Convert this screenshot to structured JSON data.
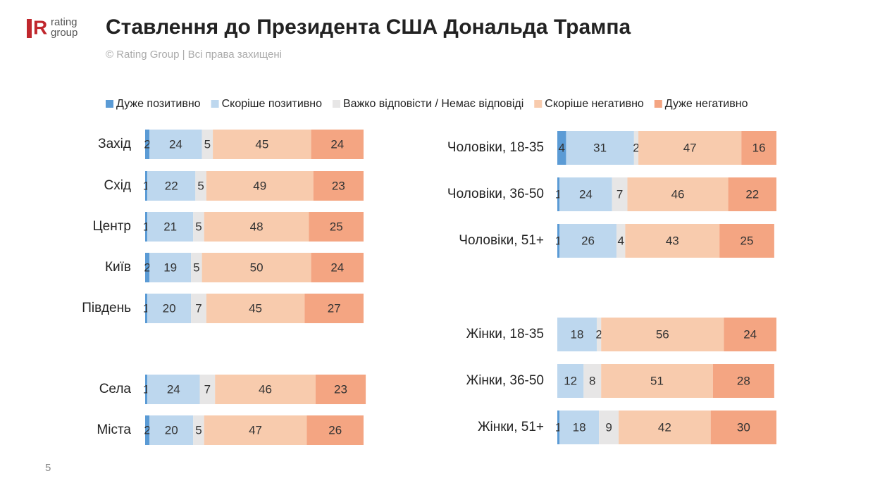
{
  "logo": [
    "rating",
    "group"
  ],
  "page_number": "5",
  "chart_data": [
    {
      "type": "stacked-bar-horizontal",
      "title": "Ставлення до Президента США Дональда Трампа",
      "subtitle": "© Rating Group | Всі права захищені",
      "xlim": [
        0,
        100
      ],
      "categories": [
        "Захід",
        "Схід",
        "Центр",
        "Київ",
        "Південь",
        "Села",
        "Міста"
      ],
      "series": [
        {
          "name": "Дуже позитивно",
          "color": "#5b9bd5",
          "values": [
            2,
            1,
            1,
            2,
            1,
            1,
            2
          ]
        },
        {
          "name": "Скоріше позитивно",
          "color": "#bdd7ee",
          "values": [
            24,
            22,
            21,
            19,
            20,
            24,
            20
          ]
        },
        {
          "name": "Важко відповісти / Немає відповіді",
          "color": "#e7e6e6",
          "values": [
            5,
            5,
            5,
            5,
            7,
            7,
            5
          ]
        },
        {
          "name": "Скоріше негативно",
          "color": "#f8cbad",
          "values": [
            45,
            49,
            48,
            50,
            45,
            46,
            47
          ]
        },
        {
          "name": "Дуже негативно",
          "color": "#f4a582",
          "values": [
            24,
            23,
            25,
            24,
            27,
            23,
            26
          ]
        }
      ]
    },
    {
      "type": "stacked-bar-horizontal",
      "xlim": [
        0,
        100
      ],
      "categories": [
        "Чоловіки, 18-35",
        "Чоловіки, 36-50",
        "Чоловіки, 51+",
        "Жінки, 18-35",
        "Жінки, 36-50",
        "Жінки, 51+"
      ],
      "series": [
        {
          "color": "#5b9bd5",
          "values": [
            4,
            1,
            1,
            0,
            0,
            1
          ]
        },
        {
          "color": "#bdd7ee",
          "values": [
            31,
            24,
            26,
            18,
            12,
            18
          ]
        },
        {
          "color": "#e7e6e6",
          "values": [
            2,
            7,
            4,
            2,
            8,
            9
          ]
        },
        {
          "color": "#f8cbad",
          "values": [
            47,
            46,
            43,
            56,
            51,
            42
          ]
        },
        {
          "color": "#f4a582",
          "values": [
            16,
            22,
            25,
            24,
            28,
            30
          ]
        }
      ]
    }
  ]
}
